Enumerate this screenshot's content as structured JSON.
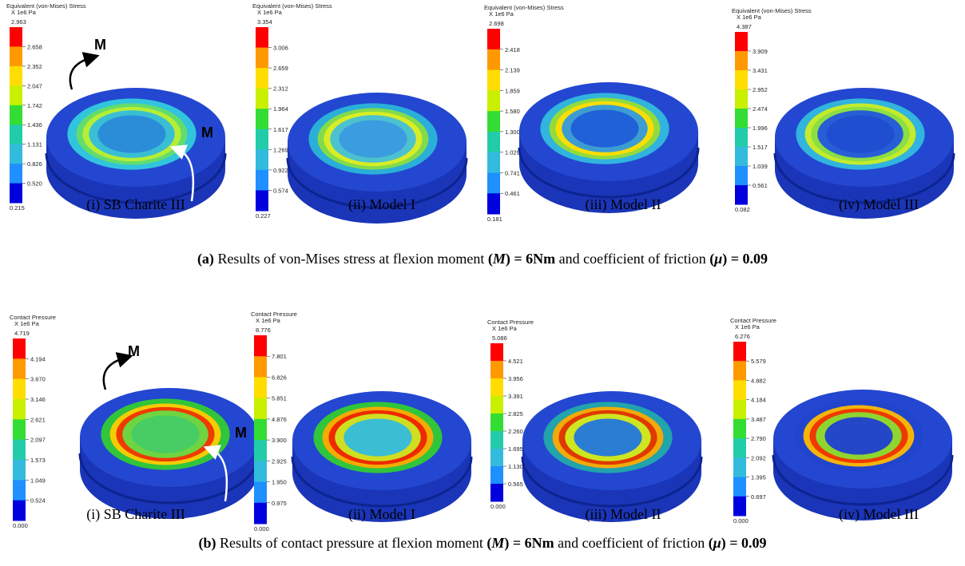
{
  "panels": [
    {
      "caption": [
        {
          "text": "(a)",
          "bold": true
        },
        {
          "text": " Results of von-Mises stress at flexion moment ",
          "bold": false
        },
        {
          "text": "(",
          "bold": true
        },
        {
          "text": "M",
          "bold": true,
          "italic": true
        },
        {
          "text": ") = 6Nm",
          "bold": true
        },
        {
          "text": " and coefficient of friction ",
          "bold": false
        },
        {
          "text": "(",
          "bold": true
        },
        {
          "text": "μ",
          "bold": true,
          "italic": true
        },
        {
          "text": ") = 0.09",
          "bold": true
        }
      ],
      "moment_labels": [
        "M",
        "M"
      ],
      "subpanels": [
        {
          "legend_title": "Equivalent (von-Mises) Stress",
          "legend_unit": "X 1e6 Pa",
          "legend_values": [
            "2.963",
            "2.658",
            "2.352",
            "2.047",
            "1.742",
            "1.436",
            "1.131",
            "0.826",
            "0.520",
            "0.215"
          ],
          "label": "(i) SB Charite III"
        },
        {
          "legend_title": "Equivalent (von-Mises) Stress",
          "legend_unit": "X 1e6 Pa",
          "legend_values": [
            "3.354",
            "3.006",
            "2.659",
            "2.312",
            "1.964",
            "1.617",
            "1.269",
            "0.922",
            "0.574",
            "0.227"
          ],
          "label": "(ii) Model I"
        },
        {
          "legend_title": "Equivalent (von-Mises) Stress",
          "legend_unit": "X 1e6 Pa",
          "legend_values": [
            "2.698",
            "2.418",
            "2.139",
            "1.859",
            "1.580",
            "1.300",
            "1.020",
            "0.741",
            "0.461",
            "0.181"
          ],
          "label": "(iii) Model II"
        },
        {
          "legend_title": "Equivalent (von-Mises) Stress",
          "legend_unit": "X 1e6 Pa",
          "legend_values": [
            "4.387",
            "3.909",
            "3.431",
            "2.952",
            "2.474",
            "1.996",
            "1.517",
            "1.039",
            "0.561",
            "0.082"
          ],
          "label": "(iv) Model III"
        }
      ]
    },
    {
      "caption": [
        {
          "text": "(b)",
          "bold": true
        },
        {
          "text": " Results of contact pressure at flexion moment ",
          "bold": false
        },
        {
          "text": "(",
          "bold": true
        },
        {
          "text": "M",
          "bold": true,
          "italic": true
        },
        {
          "text": ") = 6Nm",
          "bold": true
        },
        {
          "text": " and coefficient of friction ",
          "bold": false
        },
        {
          "text": "(",
          "bold": true
        },
        {
          "text": "μ",
          "bold": true,
          "italic": true
        },
        {
          "text": ") = 0.09",
          "bold": true
        }
      ],
      "moment_labels": [
        "M",
        "M"
      ],
      "subpanels": [
        {
          "legend_title": "Contact Pressure",
          "legend_unit": "X 1e6 Pa",
          "legend_values": [
            "4.719",
            "4.194",
            "3.670",
            "3.146",
            "2.621",
            "2.097",
            "1.573",
            "1.049",
            "0.524",
            "0.000"
          ],
          "label": "(i) SB Charite III"
        },
        {
          "legend_title": "Contact Pressure",
          "legend_unit": "X 1e6 Pa",
          "legend_values": [
            "8.776",
            "7.801",
            "6.826",
            "5.851",
            "4.876",
            "3.900",
            "2.925",
            "1.950",
            "0.975",
            "0.000"
          ],
          "label": "(ii) Model I"
        },
        {
          "legend_title": "Contact Pressure",
          "legend_unit": "X 1e6 Pa",
          "legend_values": [
            "5.086",
            "4.521",
            "3.956",
            "3.391",
            "2.825",
            "2.260",
            "1.695",
            "1.130",
            "0.565",
            "0.000"
          ],
          "label": "(iii) Model II"
        },
        {
          "legend_title": "Contact Pressure",
          "legend_unit": "X 1e6 Pa",
          "legend_values": [
            "6.276",
            "5.579",
            "4.882",
            "4.184",
            "3.487",
            "2.790",
            "2.092",
            "1.395",
            "0.697",
            "0.000"
          ],
          "label": "(iv) Model III"
        }
      ]
    }
  ]
}
